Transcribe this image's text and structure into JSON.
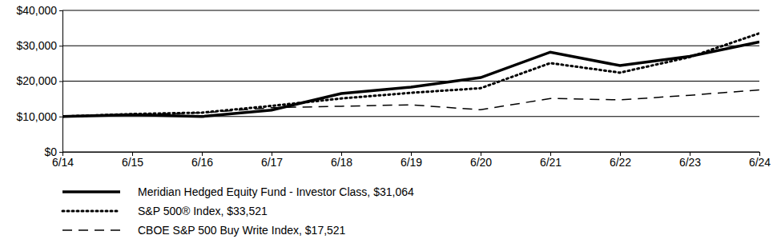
{
  "chart_data": {
    "type": "line",
    "categories": [
      "6/14",
      "6/15",
      "6/16",
      "6/17",
      "6/18",
      "6/19",
      "6/20",
      "6/21",
      "6/22",
      "6/23",
      "6/24"
    ],
    "series": [
      {
        "name": "Meridian Hedged Equity Fund - Investor Class, $31,064",
        "color": "#000000",
        "line_style": "solid",
        "values": [
          10000,
          10500,
          10000,
          11800,
          16500,
          18300,
          21000,
          28200,
          24400,
          27000,
          31064
        ]
      },
      {
        "name": "S&P 500® Index, $33,521",
        "color": "#000000",
        "line_style": "dotted",
        "values": [
          10000,
          10700,
          11100,
          13000,
          15100,
          16700,
          18000,
          25100,
          22400,
          26800,
          33521
        ]
      },
      {
        "name": "CBOE S&P 500 Buy Write Index, $17,521",
        "color": "#000000",
        "line_style": "dashed",
        "values": [
          10000,
          10600,
          11000,
          12500,
          12900,
          13300,
          11900,
          15100,
          14700,
          16000,
          17521
        ]
      }
    ],
    "ylim": [
      0,
      40000
    ],
    "yticks": [
      {
        "value": 0,
        "label": "$0"
      },
      {
        "value": 10000,
        "label": "$10,000"
      },
      {
        "value": 20000,
        "label": "$20,000"
      },
      {
        "value": 30000,
        "label": "$30,000"
      },
      {
        "value": 40000,
        "label": "$40,000"
      }
    ],
    "grid": true,
    "legend": "bottom"
  }
}
